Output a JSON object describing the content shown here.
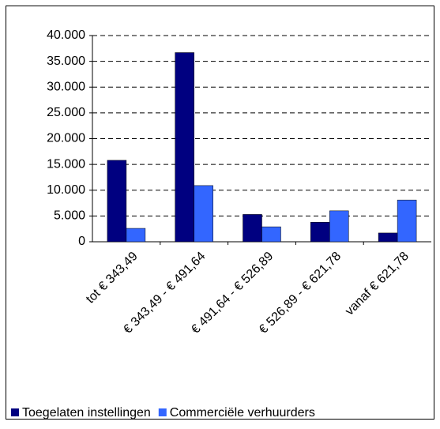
{
  "chart_data": {
    "type": "bar",
    "categories": [
      "tot € 343,49",
      "€ 343,49 - € 491,64",
      "€ 491,64 - € 526,89",
      "€ 526,89 - € 621,78",
      "vanaf € 621,78"
    ],
    "series": [
      {
        "name": "Toegelaten instellingen",
        "color": "#000080",
        "values": [
          15800,
          36700,
          5300,
          3800,
          1700
        ]
      },
      {
        "name": "Commerciële verhuurders",
        "color": "#3366ff",
        "values": [
          2600,
          10900,
          2900,
          6000,
          8100
        ]
      }
    ],
    "ylim": [
      0,
      40000
    ],
    "yticks": [
      0,
      {
        "value": 5000,
        "label": "5.000"
      },
      {
        "value": 10000,
        "label": "10.000"
      },
      {
        "value": 15000,
        "label": "15.000"
      },
      {
        "value": 20000,
        "label": "20.000"
      },
      {
        "value": 25000,
        "label": "25.000"
      },
      {
        "value": 30000,
        "label": "30.000"
      },
      {
        "value": 35000,
        "label": "35.000"
      },
      {
        "value": 40000,
        "label": "40.000"
      }
    ],
    "grid": true
  }
}
